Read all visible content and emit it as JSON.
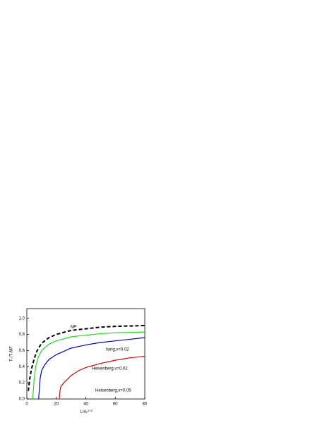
{
  "chart_data": {
    "type": "line",
    "x_label": "L/a₀¹ᐟ²",
    "y_label": "T꜀/T꜀MF",
    "xlim": [
      0,
      80
    ],
    "xticks": [
      0,
      20,
      40,
      60,
      80
    ],
    "ylim": [
      0,
      1.12
    ],
    "yticks": [
      {
        "value": 0,
        "label": "0.0"
      },
      0.2,
      0.4,
      0.6,
      0.8,
      {
        "value": 1,
        "label": "1.0"
      }
    ],
    "series": [
      {
        "name": "MF",
        "color": "#000000",
        "dashed": true,
        "x": [
          1,
          2,
          3,
          5,
          7,
          10,
          15,
          20,
          30,
          40,
          50,
          60,
          70,
          80
        ],
        "values": [
          0.1,
          0.25,
          0.36,
          0.5,
          0.6,
          0.69,
          0.76,
          0.8,
          0.85,
          0.87,
          0.89,
          0.9,
          0.905,
          0.91
        ]
      },
      {
        "name": "Ising,ν=0.02",
        "color": "#22dd22",
        "dashed": false,
        "x": [
          4,
          5,
          6,
          8,
          10,
          15,
          20,
          30,
          40,
          50,
          60,
          70,
          80
        ],
        "values": [
          0,
          0.25,
          0.4,
          0.53,
          0.6,
          0.68,
          0.72,
          0.77,
          0.79,
          0.81,
          0.82,
          0.825,
          0.83
        ]
      },
      {
        "name": "Heisenberg,ν=0.02",
        "color": "#0000dd",
        "dashed": false,
        "x": [
          8,
          9,
          10,
          12,
          15,
          20,
          30,
          40,
          50,
          60,
          70,
          80
        ],
        "values": [
          0,
          0.25,
          0.35,
          0.42,
          0.49,
          0.55,
          0.63,
          0.67,
          0.7,
          0.72,
          0.74,
          0.76
        ]
      },
      {
        "name": "Heisenberg,ν=0.05",
        "color": "#dd0000",
        "dashed": false,
        "x": [
          22,
          22.5,
          23,
          25,
          30,
          35,
          40,
          50,
          60,
          70,
          80
        ],
        "values": [
          0,
          0.1,
          0.15,
          0.2,
          0.29,
          0.35,
          0.39,
          0.44,
          0.48,
          0.51,
          0.53
        ]
      }
    ]
  }
}
